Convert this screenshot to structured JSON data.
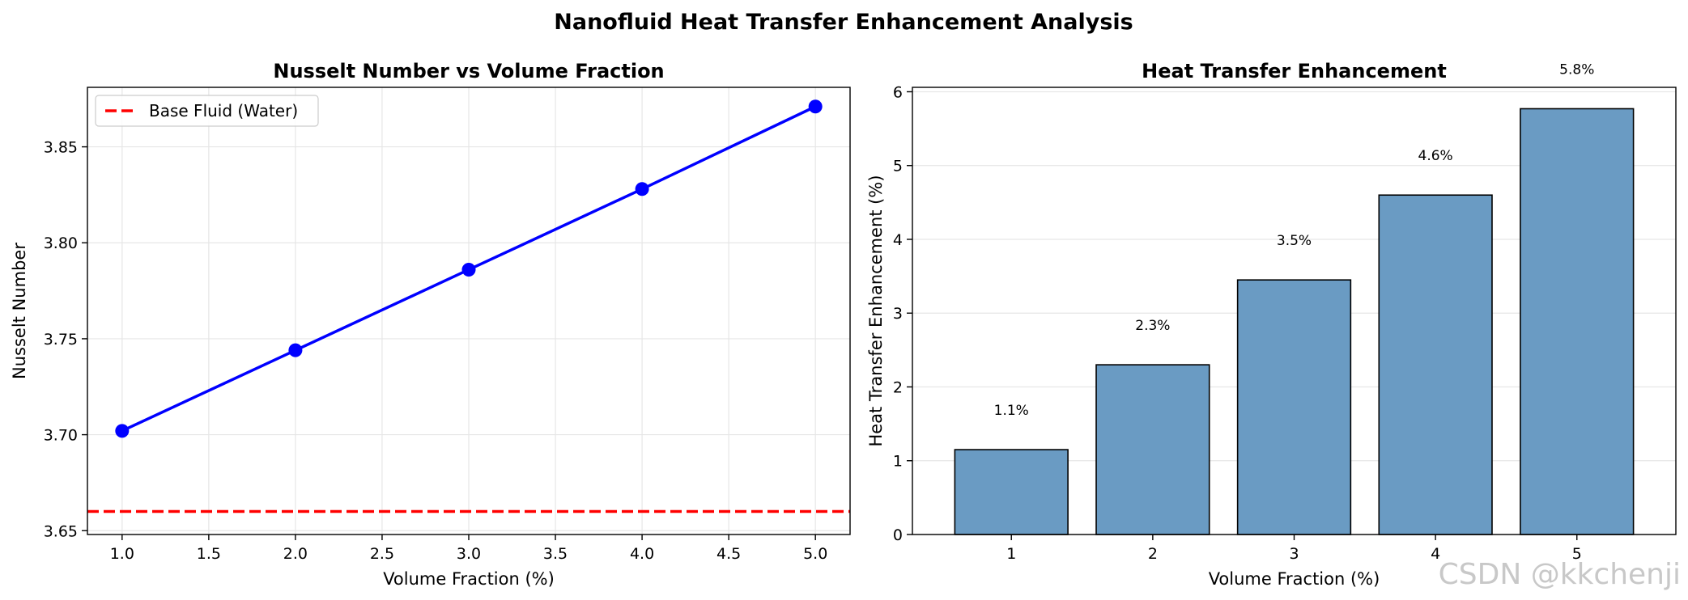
{
  "figure": {
    "suptitle": "Nanofluid Heat Transfer Enhancement Analysis",
    "watermark": "CSDN @kkchenji"
  },
  "chart_data": [
    {
      "type": "line",
      "title": "Nusselt Number vs Volume Fraction",
      "xlabel": "Volume Fraction (%)",
      "ylabel": "Nusselt Number",
      "x": [
        1.0,
        2.0,
        3.0,
        4.0,
        5.0
      ],
      "series": [
        {
          "values": [
            3.702,
            3.744,
            3.786,
            3.828,
            3.871
          ],
          "color": "#0000ff",
          "marker": "circle"
        }
      ],
      "reference_lines": [
        {
          "name": "Base Fluid (Water)",
          "y": 3.66,
          "color": "#ff0000",
          "style": "dashed"
        }
      ],
      "xlim": [
        0.8,
        5.2
      ],
      "ylim": [
        3.648,
        3.881
      ],
      "xticks": [
        1.0,
        1.5,
        2.0,
        2.5,
        3.0,
        3.5,
        4.0,
        4.5,
        5.0
      ],
      "xtick_labels": [
        "1.0",
        "1.5",
        "2.0",
        "2.5",
        "3.0",
        "3.5",
        "4.0",
        "4.5",
        "5.0"
      ],
      "yticks": [
        3.65,
        3.7,
        3.75,
        3.8,
        3.85
      ],
      "ytick_labels": [
        "3.65",
        "3.70",
        "3.75",
        "3.80",
        "3.85"
      ],
      "grid": true,
      "legend": "upper-left"
    },
    {
      "type": "bar",
      "title": "Heat Transfer Enhancement",
      "xlabel": "Volume Fraction (%)",
      "ylabel": "Heat Transfer Enhancement (%)",
      "categories": [
        "1",
        "2",
        "3",
        "4",
        "5"
      ],
      "values": [
        1.15,
        2.3,
        3.45,
        4.6,
        5.77
      ],
      "data_labels": [
        "1.1%",
        "2.3%",
        "3.5%",
        "4.6%",
        "5.8%"
      ],
      "bar_color": "#6a9bc3",
      "edge_color": "#000000",
      "ylim": [
        0,
        6.06
      ],
      "yticks": [
        0,
        1,
        2,
        3,
        4,
        5,
        6
      ],
      "ytick_labels": [
        "0",
        "1",
        "2",
        "3",
        "4",
        "5",
        "6"
      ],
      "grid": true,
      "grid_axis": "y"
    }
  ]
}
